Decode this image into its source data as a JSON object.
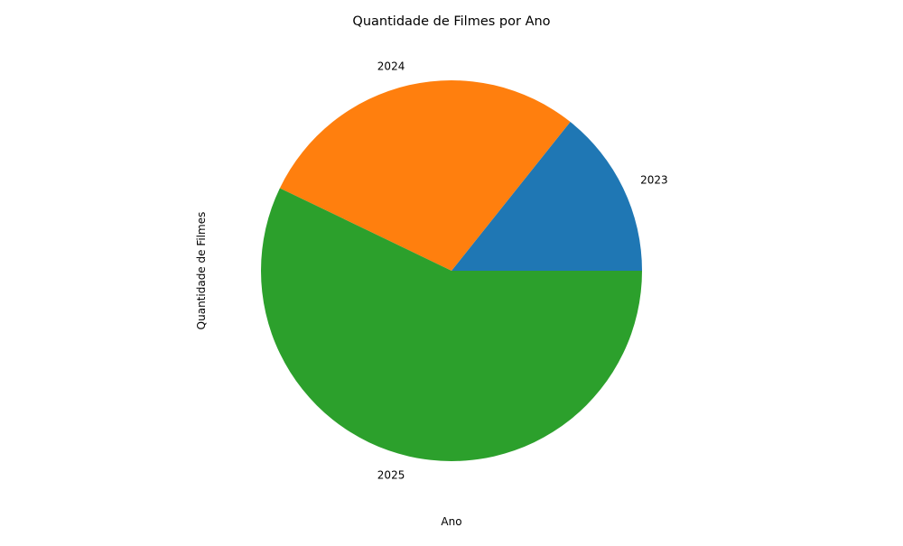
{
  "chart_data": {
    "type": "pie",
    "title": "Quantidade de Filmes por Ano",
    "xlabel": "Ano",
    "ylabel": "Quantidade de Filmes",
    "categories": [
      "2023",
      "2024",
      "2025"
    ],
    "values": [
      1,
      2,
      4
    ],
    "colors": [
      "#1f77b4",
      "#ff7f0e",
      "#2ca02c"
    ],
    "start_angle_deg": 0,
    "direction": "counterclockwise",
    "legend": "none"
  }
}
